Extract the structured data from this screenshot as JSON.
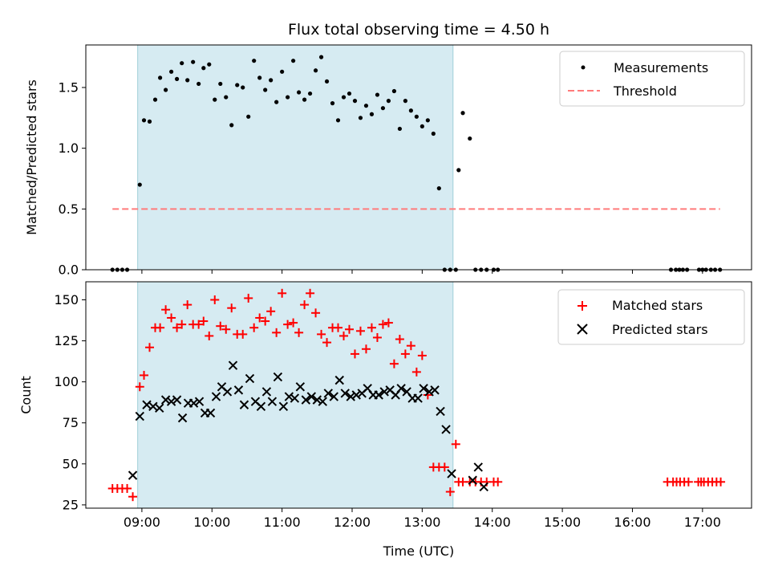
{
  "chart_data": [
    {
      "type": "scatter",
      "title": "Flux total observing time = 4.50 h",
      "xlabel": "",
      "ylabel": "Matched/Predicted stars",
      "xlim": [
        8.2,
        17.7
      ],
      "ylim": [
        0,
        1.85
      ],
      "yticks": [
        0.0,
        0.5,
        1.0,
        1.5
      ],
      "ytick_labels": [
        "0.0",
        "0.5",
        "1.0",
        "1.5"
      ],
      "observing_window": [
        8.94,
        13.44
      ],
      "series": [
        {
          "name": "Measurements",
          "color": "#000000",
          "marker": "dot",
          "x": [
            8.58,
            8.65,
            8.72,
            8.79,
            8.97,
            9.03,
            9.11,
            9.19,
            9.26,
            9.34,
            9.42,
            9.5,
            9.57,
            9.65,
            9.73,
            9.81,
            9.88,
            9.96,
            10.04,
            10.12,
            10.2,
            10.28,
            10.36,
            10.44,
            10.52,
            10.6,
            10.68,
            10.76,
            10.84,
            10.92,
            11.0,
            11.08,
            11.16,
            11.24,
            11.32,
            11.4,
            11.48,
            11.56,
            11.64,
            11.72,
            11.8,
            11.88,
            11.96,
            12.04,
            12.12,
            12.2,
            12.28,
            12.36,
            12.44,
            12.52,
            12.6,
            12.68,
            12.76,
            12.84,
            12.92,
            13.0,
            13.08,
            13.16,
            13.24,
            13.32,
            13.4,
            13.48,
            13.52,
            13.58,
            13.68,
            13.76,
            13.84,
            13.92,
            14.02,
            14.08,
            16.55,
            16.62,
            16.67,
            16.72,
            16.78,
            16.95,
            17.0,
            17.05,
            17.12,
            17.18,
            17.25
          ],
          "y": [
            0,
            0,
            0,
            0,
            0.7,
            1.23,
            1.22,
            1.4,
            1.58,
            1.48,
            1.63,
            1.57,
            1.7,
            1.56,
            1.71,
            1.53,
            1.66,
            1.69,
            1.4,
            1.53,
            1.42,
            1.19,
            1.52,
            1.5,
            1.26,
            1.72,
            1.58,
            1.48,
            1.56,
            1.38,
            1.63,
            1.42,
            1.72,
            1.46,
            1.4,
            1.45,
            1.64,
            1.75,
            1.55,
            1.37,
            1.23,
            1.42,
            1.45,
            1.39,
            1.25,
            1.35,
            1.28,
            1.44,
            1.33,
            1.39,
            1.47,
            1.16,
            1.39,
            1.31,
            1.26,
            1.18,
            1.23,
            1.12,
            0.67,
            0,
            0,
            0,
            0.82,
            1.29,
            1.08,
            0,
            0,
            0,
            0,
            0,
            0,
            0,
            0,
            0,
            0,
            0,
            0,
            0,
            0,
            0,
            0
          ]
        },
        {
          "name": "Threshold",
          "color": "#ff7b7b",
          "style": "dashed",
          "x": [
            8.58,
            17.25
          ],
          "y": [
            0.5,
            0.5
          ]
        }
      ],
      "legend": [
        "Measurements",
        "Threshold"
      ],
      "legend_loc": "top-right"
    },
    {
      "type": "scatter",
      "title": "",
      "xlabel": "Time (UTC)",
      "ylabel": "Count",
      "xlim": [
        8.2,
        17.7
      ],
      "ylim": [
        23,
        161
      ],
      "yticks": [
        25,
        50,
        75,
        100,
        125,
        150
      ],
      "ytick_labels": [
        "25",
        "50",
        "75",
        "100",
        "125",
        "150"
      ],
      "xticks": [
        9,
        10,
        11,
        12,
        13,
        14,
        15,
        16,
        17
      ],
      "xtick_labels": [
        "09:00",
        "10:00",
        "11:00",
        "12:00",
        "13:00",
        "14:00",
        "15:00",
        "16:00",
        "17:00"
      ],
      "observing_window": [
        8.94,
        13.44
      ],
      "series": [
        {
          "name": "Matched stars",
          "color": "#ff0000",
          "marker": "plus",
          "x": [
            8.58,
            8.65,
            8.72,
            8.79,
            8.87,
            8.97,
            9.03,
            9.11,
            9.19,
            9.26,
            9.34,
            9.42,
            9.5,
            9.57,
            9.65,
            9.73,
            9.81,
            9.88,
            9.96,
            10.04,
            10.12,
            10.2,
            10.28,
            10.36,
            10.44,
            10.52,
            10.6,
            10.68,
            10.76,
            10.84,
            10.92,
            11.0,
            11.08,
            11.16,
            11.24,
            11.32,
            11.4,
            11.48,
            11.56,
            11.64,
            11.72,
            11.8,
            11.88,
            11.96,
            12.04,
            12.12,
            12.2,
            12.28,
            12.36,
            12.44,
            12.52,
            12.6,
            12.68,
            12.76,
            12.84,
            12.92,
            13.0,
            13.08,
            13.16,
            13.24,
            13.32,
            13.4,
            13.48,
            13.52,
            13.58,
            13.68,
            13.76,
            13.84,
            13.92,
            14.02,
            14.08,
            16.5,
            16.58,
            16.63,
            16.68,
            16.74,
            16.8,
            16.94,
            16.98,
            17.02,
            17.08,
            17.14,
            17.2,
            17.26
          ],
          "y": [
            35,
            35,
            35,
            35,
            30,
            97,
            104,
            121,
            133,
            133,
            144,
            139,
            133,
            135,
            147,
            135,
            135,
            137,
            128,
            150,
            134,
            132,
            145,
            129,
            129,
            151,
            133,
            139,
            137,
            143,
            130,
            154,
            135,
            136,
            130,
            147,
            154,
            142,
            129,
            124,
            133,
            133,
            128,
            132,
            117,
            131,
            120,
            133,
            127,
            135,
            136,
            111,
            126,
            117,
            122,
            106,
            116,
            92,
            48,
            48,
            48,
            33,
            62,
            39,
            39,
            39,
            39,
            39,
            39,
            39,
            39,
            39,
            39,
            39,
            39,
            39,
            39,
            39,
            39,
            39,
            39,
            39,
            39,
            39
          ]
        },
        {
          "name": "Predicted stars",
          "color": "#000000",
          "marker": "x",
          "x": [
            8.87,
            8.97,
            9.07,
            9.16,
            9.25,
            9.34,
            9.42,
            9.5,
            9.58,
            9.66,
            9.74,
            9.82,
            9.9,
            9.98,
            10.06,
            10.14,
            10.22,
            10.3,
            10.38,
            10.46,
            10.54,
            10.62,
            10.7,
            10.78,
            10.86,
            10.94,
            11.02,
            11.1,
            11.18,
            11.26,
            11.34,
            11.42,
            11.5,
            11.58,
            11.66,
            11.74,
            11.82,
            11.9,
            11.98,
            12.06,
            12.14,
            12.22,
            12.3,
            12.38,
            12.46,
            12.54,
            12.62,
            12.7,
            12.78,
            12.86,
            12.94,
            13.02,
            13.1,
            13.18,
            13.26,
            13.34,
            13.42,
            13.72,
            13.8,
            13.88
          ],
          "y": [
            43,
            79,
            86,
            85,
            84,
            89,
            88,
            89,
            78,
            87,
            87,
            88,
            81,
            81,
            91,
            97,
            94,
            110,
            95,
            86,
            102,
            88,
            85,
            94,
            88,
            103,
            85,
            91,
            90,
            97,
            89,
            91,
            89,
            88,
            93,
            91,
            101,
            93,
            91,
            92,
            93,
            96,
            92,
            92,
            94,
            95,
            92,
            96,
            94,
            90,
            90,
            96,
            94,
            95,
            82,
            71,
            44,
            40,
            48,
            36
          ]
        }
      ],
      "legend": [
        "Matched stars",
        "Predicted stars"
      ],
      "legend_loc": "top-right"
    }
  ]
}
